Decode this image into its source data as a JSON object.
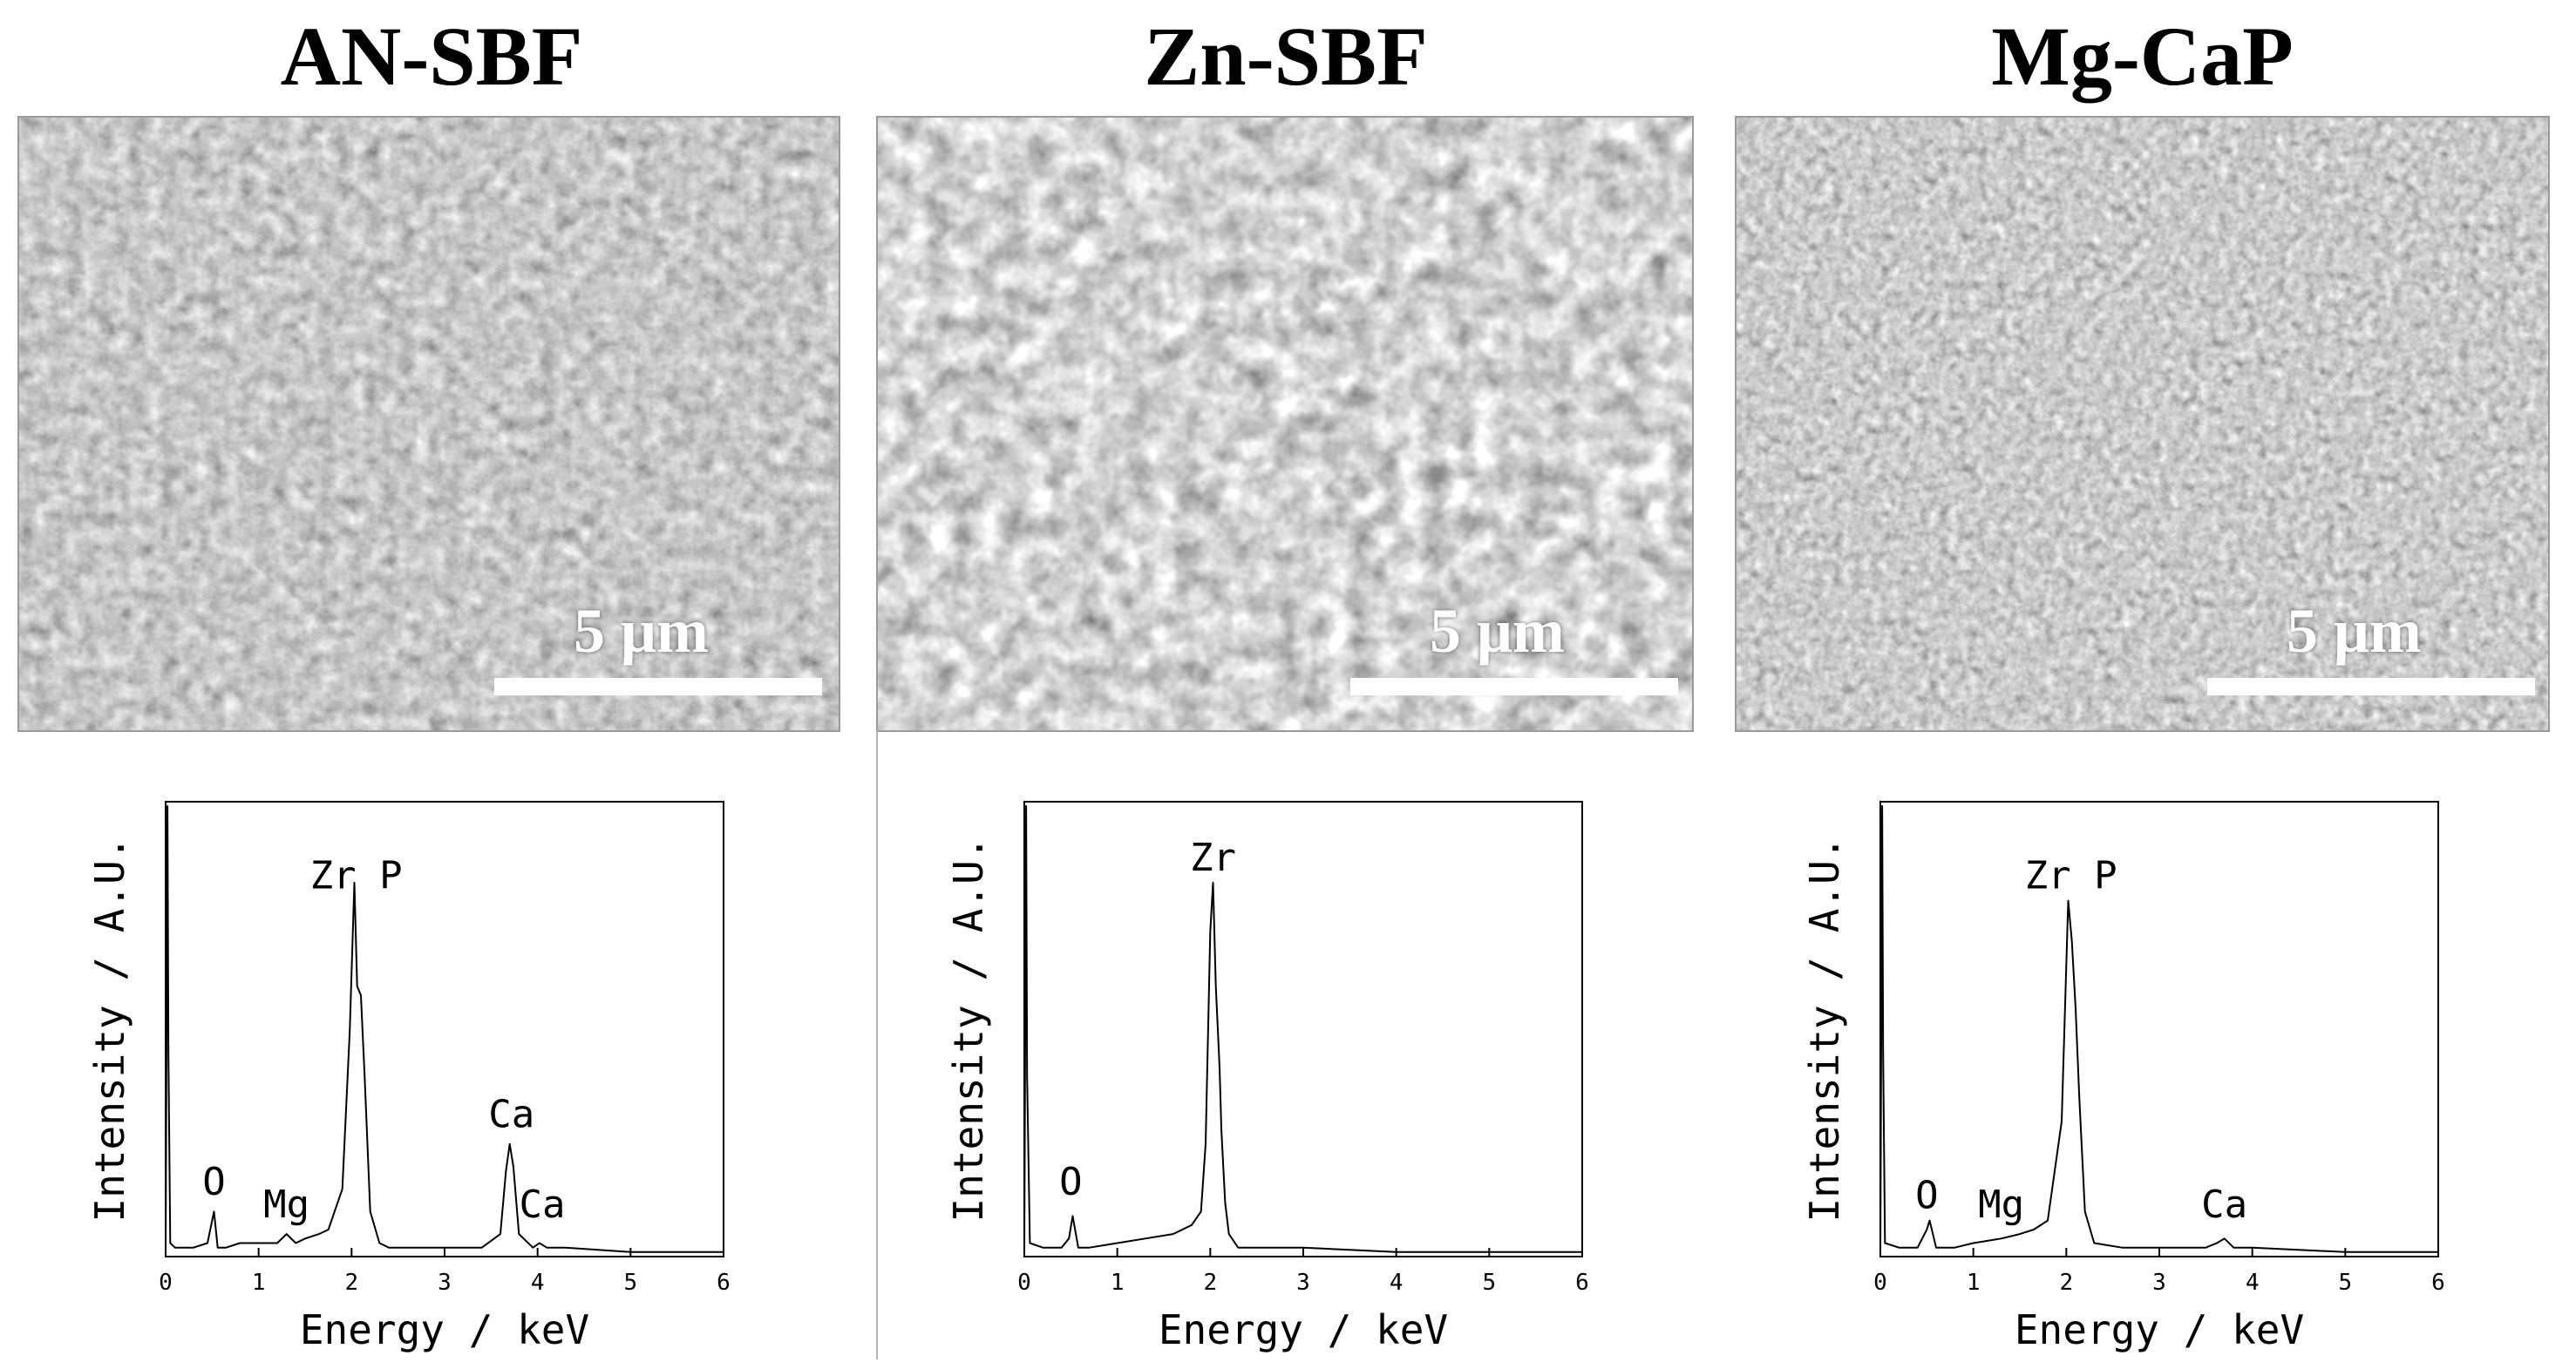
{
  "panels": [
    {
      "title": "AN-SBF",
      "scale_bar": "5 μm"
    },
    {
      "title": "Zn-SBF",
      "scale_bar": "5 μm"
    },
    {
      "title": "Mg-CaP",
      "scale_bar": "5 μm"
    }
  ],
  "chart_data": [
    {
      "type": "line",
      "xlabel": "Energy / keV",
      "ylabel": "Intensity / A.U.",
      "xlim": [
        0,
        6
      ],
      "x_ticks": [
        "0",
        "1",
        "2",
        "3",
        "4",
        "5",
        "6"
      ],
      "peak_labels": [
        {
          "text": "Zr P",
          "x": 2.05,
          "y": 0.79
        },
        {
          "text": "Ca",
          "x": 3.72,
          "y": 0.26
        },
        {
          "text": "Ca",
          "x": 4.05,
          "y": 0.06
        },
        {
          "text": "O",
          "x": 0.52,
          "y": 0.11
        },
        {
          "text": "Mg",
          "x": 1.3,
          "y": 0.06
        }
      ],
      "series": [
        {
          "x": [
            0,
            0.02,
            0.03,
            0.05,
            0.1,
            0.3,
            0.45,
            0.52,
            0.56,
            0.65,
            0.8,
            1.0,
            1.2,
            1.3,
            1.4,
            1.5,
            1.65,
            1.75,
            1.9,
            1.98,
            2.03,
            2.06,
            2.1,
            2.14,
            2.2,
            2.3,
            2.4,
            2.6,
            3.0,
            3.4,
            3.6,
            3.66,
            3.7,
            3.74,
            3.8,
            3.95,
            4.02,
            4.1,
            4.3,
            5.0,
            6.0
          ],
          "y": [
            0.0,
            1.0,
            0.45,
            0.03,
            0.02,
            0.02,
            0.03,
            0.1,
            0.02,
            0.02,
            0.03,
            0.03,
            0.03,
            0.05,
            0.03,
            0.04,
            0.05,
            0.06,
            0.15,
            0.5,
            0.83,
            0.6,
            0.58,
            0.4,
            0.1,
            0.03,
            0.02,
            0.02,
            0.02,
            0.02,
            0.05,
            0.19,
            0.25,
            0.2,
            0.05,
            0.02,
            0.03,
            0.02,
            0.02,
            0.01,
            0.01
          ]
        }
      ]
    },
    {
      "type": "line",
      "xlabel": "Energy / keV",
      "ylabel": "Intensity / A.U.",
      "xlim": [
        0,
        6
      ],
      "x_ticks": [
        "0",
        "1",
        "2",
        "3",
        "4",
        "5",
        "6"
      ],
      "peak_labels": [
        {
          "text": "Zr",
          "x": 2.03,
          "y": 0.83
        },
        {
          "text": "O",
          "x": 0.5,
          "y": 0.11
        }
      ],
      "series": [
        {
          "x": [
            0,
            0.02,
            0.03,
            0.06,
            0.2,
            0.4,
            0.48,
            0.52,
            0.58,
            0.7,
            1.0,
            1.3,
            1.6,
            1.8,
            1.9,
            1.95,
            2.0,
            2.03,
            2.06,
            2.1,
            2.12,
            2.16,
            2.2,
            2.3,
            2.5,
            3.0,
            4.0,
            5.0,
            6.0
          ],
          "y": [
            0.0,
            1.0,
            0.4,
            0.03,
            0.02,
            0.02,
            0.04,
            0.09,
            0.02,
            0.02,
            0.03,
            0.04,
            0.05,
            0.07,
            0.1,
            0.25,
            0.72,
            0.83,
            0.6,
            0.42,
            0.28,
            0.12,
            0.05,
            0.02,
            0.02,
            0.02,
            0.01,
            0.01,
            0.01
          ]
        }
      ]
    },
    {
      "type": "line",
      "xlabel": "Energy / keV",
      "ylabel": "Intensity / A.U.",
      "xlim": [
        0,
        6
      ],
      "x_ticks": [
        "0",
        "1",
        "2",
        "3",
        "4",
        "5",
        "6"
      ],
      "peak_labels": [
        {
          "text": "Zr P",
          "x": 2.05,
          "y": 0.79
        },
        {
          "text": "O",
          "x": 0.5,
          "y": 0.08
        },
        {
          "text": "Mg",
          "x": 1.3,
          "y": 0.06
        },
        {
          "text": "Ca",
          "x": 3.7,
          "y": 0.06
        }
      ],
      "series": [
        {
          "x": [
            0,
            0.02,
            0.03,
            0.05,
            0.2,
            0.4,
            0.5,
            0.53,
            0.6,
            0.8,
            1.0,
            1.3,
            1.5,
            1.65,
            1.8,
            1.95,
            2.02,
            2.06,
            2.1,
            2.14,
            2.2,
            2.3,
            2.6,
            3.0,
            3.5,
            3.62,
            3.7,
            3.8,
            4.0,
            5.0,
            6.0
          ],
          "y": [
            0.0,
            1.0,
            0.45,
            0.03,
            0.02,
            0.02,
            0.06,
            0.08,
            0.02,
            0.02,
            0.03,
            0.04,
            0.05,
            0.06,
            0.08,
            0.3,
            0.79,
            0.7,
            0.55,
            0.35,
            0.1,
            0.03,
            0.02,
            0.02,
            0.02,
            0.03,
            0.04,
            0.02,
            0.02,
            0.01,
            0.01
          ]
        }
      ]
    }
  ]
}
